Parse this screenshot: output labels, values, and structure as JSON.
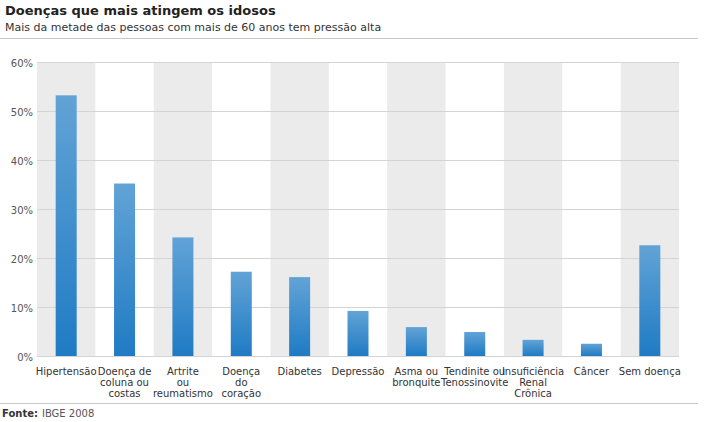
{
  "chart_data": {
    "type": "bar",
    "title": "Doenças que mais atingem os idosos",
    "subtitle": "Mais da metade das pessoas com mais de 60 anos tem pressão alta",
    "source_label": "Fonte:",
    "source": "IBGE 2008",
    "categories": [
      "Hipertensão",
      "Doença de\ncoluna ou\ncostas",
      "Artrite\nou\nreumatismo",
      "Doença\ndo\ncoração",
      "Diabetes",
      "Depressão",
      "Asma ou\nbronquite",
      "Tendinite ou\nTenossinovite",
      "Insuficiência\nRenal\nCrônica",
      "Câncer",
      "Sem doença"
    ],
    "values": [
      53.2,
      35.2,
      24.2,
      17.2,
      16.1,
      9.2,
      5.9,
      4.9,
      3.3,
      2.5,
      22.6
    ],
    "color": "#1f7bc4",
    "ylim": [
      0,
      60
    ],
    "yticks": [
      {
        "value": 0,
        "label": "0%"
      },
      {
        "value": 10,
        "label": "10%"
      },
      {
        "value": 20,
        "label": "20%"
      },
      {
        "value": 30,
        "label": "30%"
      },
      {
        "value": 40,
        "label": "40%"
      },
      {
        "value": 50,
        "label": "50%"
      },
      {
        "value": 60,
        "label": "60%"
      }
    ],
    "grid": true
  }
}
